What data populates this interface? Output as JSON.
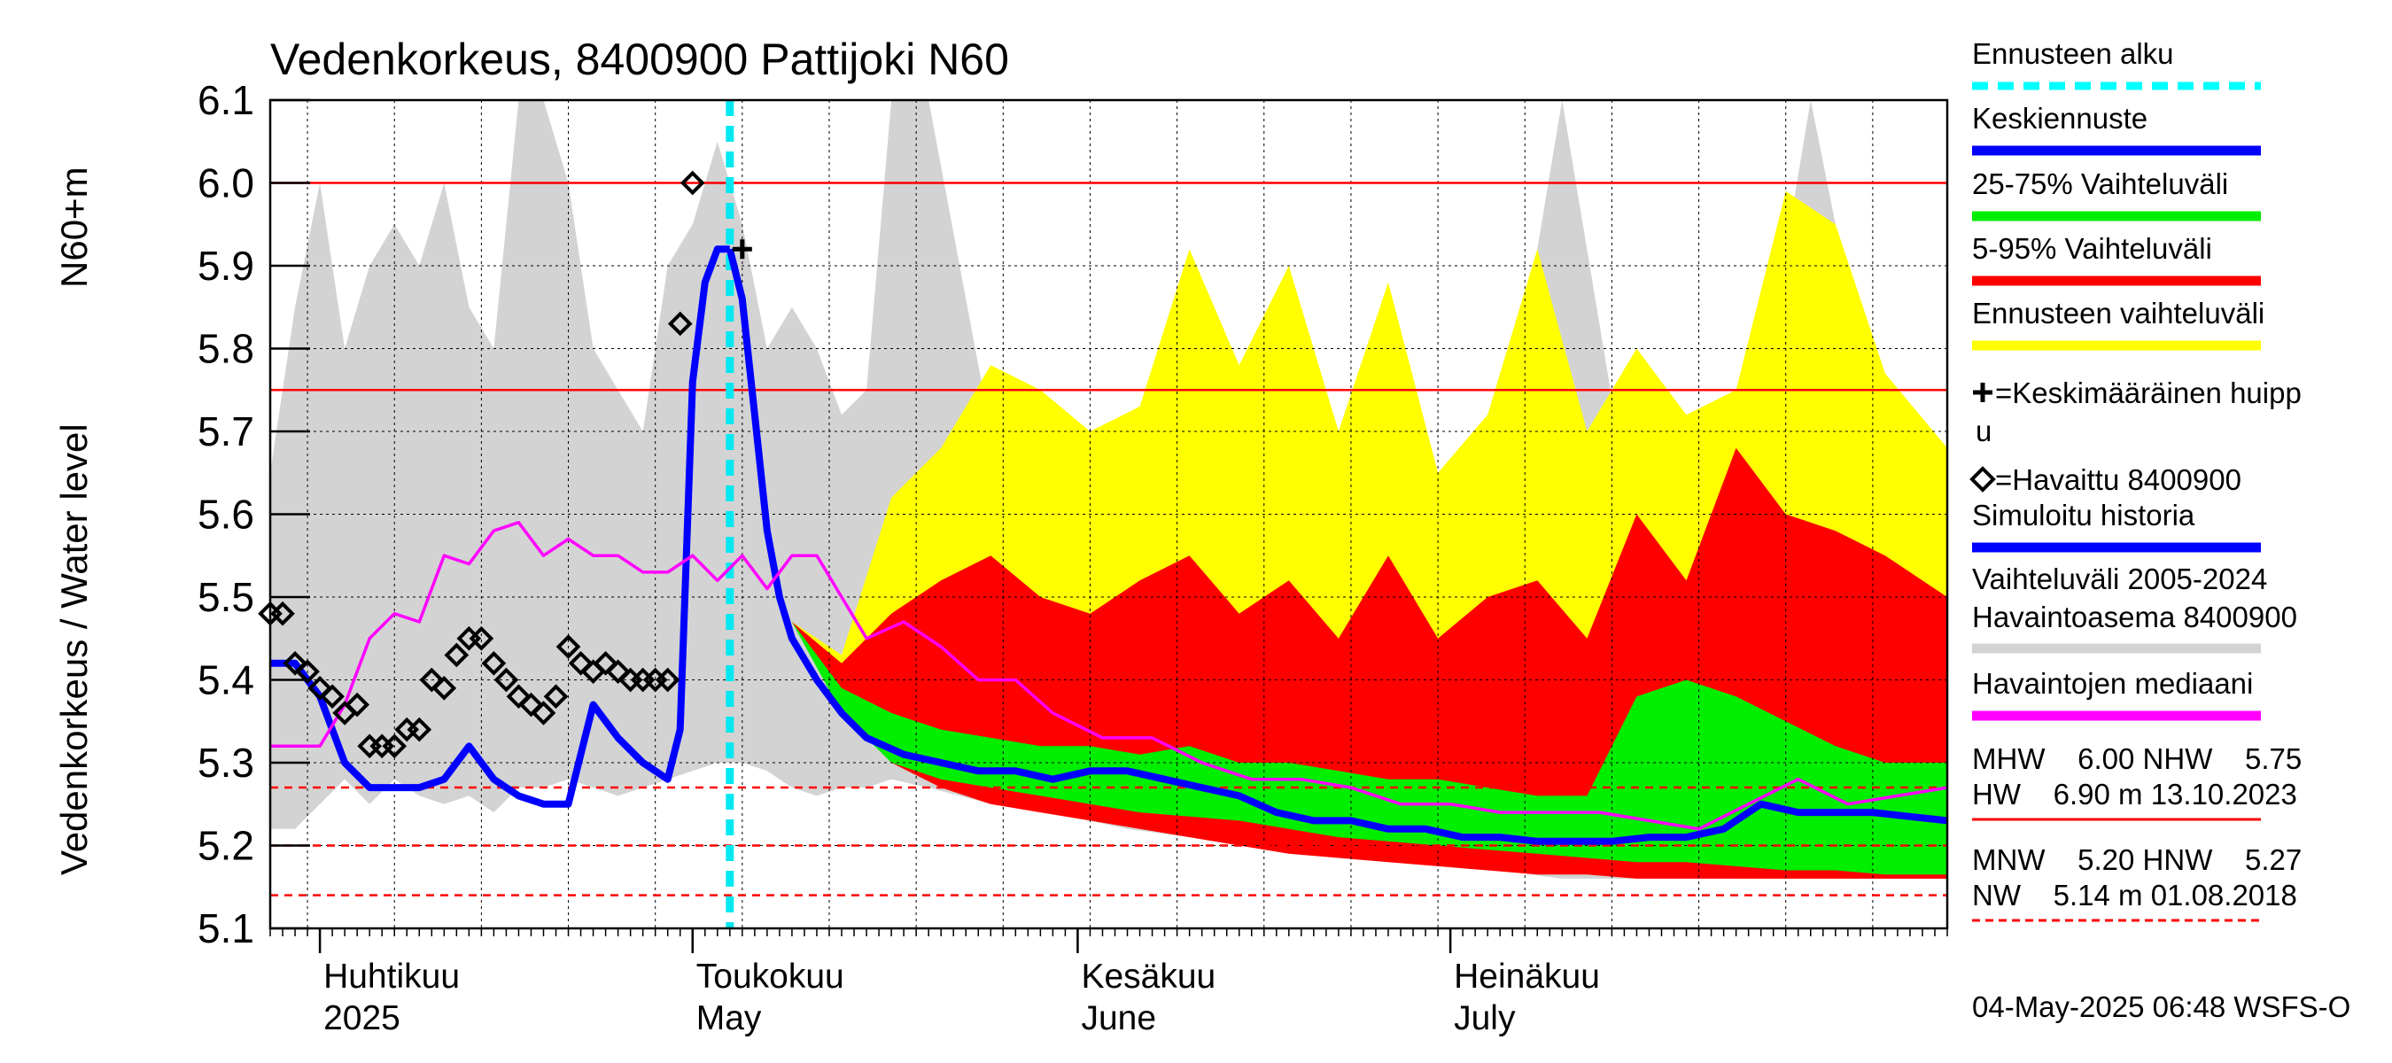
{
  "chart_data": {
    "type": "area",
    "title": "Vedenkorkeus, 8400900 Pattijoki N60",
    "ylabel_top": "N60+m",
    "ylabel": "Vedenkorkeus / Water level",
    "ylim": [
      5.1,
      6.1
    ],
    "yticks": [
      "5.1",
      "5.2",
      "5.3",
      "5.4",
      "5.5",
      "5.6",
      "5.7",
      "5.8",
      "5.9",
      "6.0",
      "6.1"
    ],
    "x_range": [
      "2025-03-28",
      "2025-08-10"
    ],
    "month_labels": [
      {
        "date": "2025-04-01",
        "fi": "Huhtikuu",
        "en": "2025"
      },
      {
        "date": "2025-05-01",
        "fi": "Toukokuu",
        "en": "May"
      },
      {
        "date": "2025-06-01",
        "fi": "Kesäkuu",
        "en": "June"
      },
      {
        "date": "2025-07-01",
        "fi": "Heinäkuu",
        "en": "July"
      }
    ],
    "forecast_start": "2025-05-04",
    "reference_lines": [
      {
        "name": "MHW",
        "value": 6.0,
        "style": "solid",
        "color": "#ff0000"
      },
      {
        "name": "NHW",
        "value": 5.75,
        "style": "solid",
        "color": "#ff0000"
      },
      {
        "name": "HNW",
        "value": 5.27,
        "style": "dashed",
        "color": "#ff0000"
      },
      {
        "name": "MNW",
        "value": 5.2,
        "style": "dashed",
        "color": "#ff0000"
      },
      {
        "name": "NW",
        "value": 5.14,
        "style": "dashed",
        "color": "#ff0000"
      }
    ],
    "series": [
      {
        "name": "Vaihteluväli 2005-2024 Havaintoasema 8400900",
        "kind": "band",
        "color": "#d3d3d3",
        "x": [
          "2025-03-28",
          "2025-03-30",
          "2025-04-01",
          "2025-04-03",
          "2025-04-05",
          "2025-04-07",
          "2025-04-09",
          "2025-04-11",
          "2025-04-13",
          "2025-04-15",
          "2025-04-17",
          "2025-04-19",
          "2025-04-21",
          "2025-04-23",
          "2025-04-25",
          "2025-04-27",
          "2025-04-29",
          "2025-05-01",
          "2025-05-03",
          "2025-05-05",
          "2025-05-07",
          "2025-05-09",
          "2025-05-11",
          "2025-05-13",
          "2025-05-15",
          "2025-05-17",
          "2025-05-20",
          "2025-05-25",
          "2025-05-30",
          "2025-06-05",
          "2025-06-10",
          "2025-06-15",
          "2025-06-20",
          "2025-06-25",
          "2025-06-30",
          "2025-07-05",
          "2025-07-10",
          "2025-07-15",
          "2025-07-20",
          "2025-07-25",
          "2025-07-30",
          "2025-08-05",
          "2025-08-10"
        ],
        "lower": [
          5.22,
          5.22,
          5.25,
          5.28,
          5.25,
          5.28,
          5.26,
          5.25,
          5.26,
          5.24,
          5.27,
          5.27,
          5.28,
          5.27,
          5.26,
          5.27,
          5.28,
          5.29,
          5.3,
          5.3,
          5.29,
          5.27,
          5.26,
          5.27,
          5.27,
          5.28,
          5.27,
          5.25,
          5.24,
          5.22,
          5.21,
          5.2,
          5.19,
          5.19,
          5.18,
          5.17,
          5.16,
          5.16,
          5.16,
          5.16,
          5.16,
          5.16,
          5.16
        ],
        "upper": [
          5.65,
          5.85,
          6.0,
          5.8,
          5.9,
          5.95,
          5.9,
          6.0,
          5.85,
          5.8,
          6.1,
          6.1,
          6.0,
          5.8,
          5.75,
          5.7,
          5.9,
          5.95,
          6.05,
          5.95,
          5.8,
          5.85,
          5.8,
          5.72,
          5.75,
          6.1,
          6.1,
          5.7,
          5.6,
          5.55,
          5.5,
          5.6,
          5.55,
          5.52,
          5.55,
          5.65,
          6.1,
          5.65,
          5.6,
          5.65,
          6.1,
          5.65,
          5.65
        ]
      },
      {
        "name": "Ennusteen vaihteluväli",
        "kind": "band",
        "color": "#ffff00",
        "x": [
          "2025-05-09",
          "2025-05-13",
          "2025-05-17",
          "2025-05-21",
          "2025-05-25",
          "2025-05-29",
          "2025-06-02",
          "2025-06-06",
          "2025-06-10",
          "2025-06-14",
          "2025-06-18",
          "2025-06-22",
          "2025-06-26",
          "2025-06-30",
          "2025-07-04",
          "2025-07-08",
          "2025-07-12",
          "2025-07-16",
          "2025-07-20",
          "2025-07-24",
          "2025-07-28",
          "2025-08-01",
          "2025-08-05",
          "2025-08-10"
        ],
        "lower": [
          5.47,
          5.4,
          5.33,
          5.29,
          5.27,
          5.25,
          5.24,
          5.23,
          5.22,
          5.21,
          5.2,
          5.19,
          5.185,
          5.18,
          5.175,
          5.17,
          5.17,
          5.165,
          5.165,
          5.16,
          5.16,
          5.16,
          5.16,
          5.16
        ],
        "upper": [
          5.47,
          5.43,
          5.62,
          5.68,
          5.78,
          5.75,
          5.7,
          5.73,
          5.92,
          5.78,
          5.9,
          5.7,
          5.88,
          5.65,
          5.72,
          5.92,
          5.7,
          5.8,
          5.72,
          5.75,
          5.99,
          5.95,
          5.77,
          5.68
        ]
      },
      {
        "name": "5-95% Vaihteluväli",
        "kind": "band",
        "color": "#ff0000",
        "x": [
          "2025-05-09",
          "2025-05-13",
          "2025-05-17",
          "2025-05-21",
          "2025-05-25",
          "2025-05-29",
          "2025-06-02",
          "2025-06-06",
          "2025-06-10",
          "2025-06-14",
          "2025-06-18",
          "2025-06-22",
          "2025-06-26",
          "2025-06-30",
          "2025-07-04",
          "2025-07-08",
          "2025-07-12",
          "2025-07-16",
          "2025-07-20",
          "2025-07-24",
          "2025-07-28",
          "2025-08-01",
          "2025-08-05",
          "2025-08-10"
        ],
        "lower": [
          5.47,
          5.37,
          5.3,
          5.27,
          5.25,
          5.24,
          5.23,
          5.22,
          5.21,
          5.2,
          5.19,
          5.185,
          5.18,
          5.175,
          5.17,
          5.165,
          5.165,
          5.16,
          5.16,
          5.16,
          5.16,
          5.16,
          5.16,
          5.16
        ],
        "upper": [
          5.47,
          5.42,
          5.48,
          5.52,
          5.55,
          5.5,
          5.48,
          5.52,
          5.55,
          5.48,
          5.52,
          5.45,
          5.55,
          5.45,
          5.5,
          5.52,
          5.45,
          5.6,
          5.52,
          5.68,
          5.6,
          5.58,
          5.55,
          5.5
        ]
      },
      {
        "name": "25-75% Vaihteluväli",
        "kind": "band",
        "color": "#00ee00",
        "x": [
          "2025-05-09",
          "2025-05-13",
          "2025-05-17",
          "2025-05-21",
          "2025-05-25",
          "2025-05-29",
          "2025-06-02",
          "2025-06-06",
          "2025-06-10",
          "2025-06-14",
          "2025-06-18",
          "2025-06-22",
          "2025-06-26",
          "2025-06-30",
          "2025-07-04",
          "2025-07-08",
          "2025-07-12",
          "2025-07-16",
          "2025-07-20",
          "2025-07-24",
          "2025-07-28",
          "2025-08-01",
          "2025-08-05",
          "2025-08-10"
        ],
        "lower": [
          5.47,
          5.36,
          5.3,
          5.28,
          5.27,
          5.26,
          5.25,
          5.24,
          5.235,
          5.23,
          5.22,
          5.21,
          5.205,
          5.2,
          5.195,
          5.19,
          5.185,
          5.18,
          5.18,
          5.175,
          5.17,
          5.17,
          5.165,
          5.165
        ],
        "upper": [
          5.47,
          5.39,
          5.36,
          5.34,
          5.33,
          5.32,
          5.32,
          5.31,
          5.32,
          5.3,
          5.3,
          5.29,
          5.28,
          5.28,
          5.27,
          5.26,
          5.26,
          5.38,
          5.4,
          5.38,
          5.35,
          5.32,
          5.3,
          5.3
        ]
      },
      {
        "name": "Simuloitu historia",
        "kind": "line",
        "color": "#0000ff",
        "x": [
          "2025-03-28",
          "2025-03-30",
          "2025-04-01",
          "2025-04-03",
          "2025-04-05",
          "2025-04-07",
          "2025-04-09",
          "2025-04-11",
          "2025-04-13",
          "2025-04-15",
          "2025-04-17",
          "2025-04-19",
          "2025-04-21",
          "2025-04-23",
          "2025-04-25",
          "2025-04-27",
          "2025-04-29",
          "2025-04-30",
          "2025-05-01",
          "2025-05-02",
          "2025-05-03",
          "2025-05-04"
        ],
        "y": [
          5.42,
          5.42,
          5.38,
          5.3,
          5.27,
          5.27,
          5.27,
          5.28,
          5.32,
          5.28,
          5.26,
          5.25,
          5.25,
          5.37,
          5.33,
          5.3,
          5.28,
          5.34,
          5.76,
          5.88,
          5.92,
          5.92
        ]
      },
      {
        "name": "Keskiennuste",
        "kind": "line",
        "color": "#0000ff",
        "x": [
          "2025-05-04",
          "2025-05-05",
          "2025-05-06",
          "2025-05-07",
          "2025-05-08",
          "2025-05-09",
          "2025-05-11",
          "2025-05-13",
          "2025-05-15",
          "2025-05-18",
          "2025-05-21",
          "2025-05-24",
          "2025-05-27",
          "2025-05-30",
          "2025-06-02",
          "2025-06-05",
          "2025-06-08",
          "2025-06-11",
          "2025-06-14",
          "2025-06-17",
          "2025-06-20",
          "2025-06-23",
          "2025-06-26",
          "2025-06-29",
          "2025-07-02",
          "2025-07-05",
          "2025-07-08",
          "2025-07-11",
          "2025-07-14",
          "2025-07-17",
          "2025-07-20",
          "2025-07-23",
          "2025-07-26",
          "2025-07-29",
          "2025-08-01",
          "2025-08-04",
          "2025-08-07",
          "2025-08-10"
        ],
        "y": [
          5.92,
          5.86,
          5.72,
          5.58,
          5.5,
          5.45,
          5.4,
          5.36,
          5.33,
          5.31,
          5.3,
          5.29,
          5.29,
          5.28,
          5.29,
          5.29,
          5.28,
          5.27,
          5.26,
          5.24,
          5.23,
          5.23,
          5.22,
          5.22,
          5.21,
          5.21,
          5.205,
          5.205,
          5.205,
          5.21,
          5.21,
          5.22,
          5.25,
          5.24,
          5.24,
          5.24,
          5.235,
          5.23
        ]
      },
      {
        "name": "Havaintojen mediaani",
        "kind": "line",
        "color": "#ff00ff",
        "x": [
          "2025-03-28",
          "2025-04-01",
          "2025-04-03",
          "2025-04-05",
          "2025-04-07",
          "2025-04-09",
          "2025-04-11",
          "2025-04-13",
          "2025-04-15",
          "2025-04-17",
          "2025-04-19",
          "2025-04-21",
          "2025-04-23",
          "2025-04-25",
          "2025-04-27",
          "2025-04-29",
          "2025-05-01",
          "2025-05-03",
          "2025-05-05",
          "2025-05-07",
          "2025-05-09",
          "2025-05-11",
          "2025-05-13",
          "2025-05-15",
          "2025-05-18",
          "2025-05-21",
          "2025-05-24",
          "2025-05-27",
          "2025-05-30",
          "2025-06-03",
          "2025-06-07",
          "2025-06-11",
          "2025-06-15",
          "2025-06-19",
          "2025-06-23",
          "2025-06-27",
          "2025-07-01",
          "2025-07-05",
          "2025-07-09",
          "2025-07-13",
          "2025-07-17",
          "2025-07-21",
          "2025-07-25",
          "2025-07-29",
          "2025-08-02",
          "2025-08-06",
          "2025-08-10"
        ],
        "y": [
          5.32,
          5.32,
          5.37,
          5.45,
          5.48,
          5.47,
          5.55,
          5.54,
          5.58,
          5.59,
          5.55,
          5.57,
          5.55,
          5.55,
          5.53,
          5.53,
          5.55,
          5.52,
          5.55,
          5.51,
          5.55,
          5.55,
          5.5,
          5.45,
          5.47,
          5.44,
          5.4,
          5.4,
          5.36,
          5.33,
          5.33,
          5.3,
          5.28,
          5.28,
          5.27,
          5.25,
          5.25,
          5.24,
          5.24,
          5.24,
          5.23,
          5.22,
          5.25,
          5.28,
          5.25,
          5.26,
          5.27
        ]
      },
      {
        "name": "=Havaittu 8400900",
        "kind": "markers",
        "marker": "diamond",
        "color": "#000000",
        "x": [
          "2025-03-28",
          "2025-03-29",
          "2025-03-30",
          "2025-03-31",
          "2025-04-01",
          "2025-04-02",
          "2025-04-03",
          "2025-04-04",
          "2025-04-05",
          "2025-04-06",
          "2025-04-07",
          "2025-04-08",
          "2025-04-09",
          "2025-04-10",
          "2025-04-11",
          "2025-04-12",
          "2025-04-13",
          "2025-04-14",
          "2025-04-15",
          "2025-04-16",
          "2025-04-17",
          "2025-04-18",
          "2025-04-19",
          "2025-04-20",
          "2025-04-21",
          "2025-04-22",
          "2025-04-23",
          "2025-04-24",
          "2025-04-25",
          "2025-04-26",
          "2025-04-27",
          "2025-04-28",
          "2025-04-29",
          "2025-04-30",
          "2025-05-01"
        ],
        "y": [
          5.48,
          5.48,
          5.42,
          5.41,
          5.39,
          5.38,
          5.36,
          5.37,
          5.32,
          5.32,
          5.32,
          5.34,
          5.34,
          5.4,
          5.39,
          5.43,
          5.45,
          5.45,
          5.42,
          5.4,
          5.38,
          5.37,
          5.36,
          5.38,
          5.44,
          5.42,
          5.41,
          5.42,
          5.41,
          5.4,
          5.4,
          5.4,
          5.4,
          5.83,
          6.0
        ]
      },
      {
        "name": "=Keskimääräinen huippu",
        "kind": "markers",
        "marker": "cross",
        "color": "#000000",
        "x": [
          "2025-05-05"
        ],
        "y": [
          5.92
        ]
      }
    ]
  },
  "legend": {
    "items": [
      {
        "label": "Ennusteen alku",
        "color": "#00ffff",
        "style": "dashed"
      },
      {
        "label": "Keskiennuste",
        "color": "#0000ff",
        "style": "solid"
      },
      {
        "label": "25-75% Vaihteluväli",
        "color": "#00ee00",
        "style": "solid"
      },
      {
        "label": "5-95% Vaihteluväli",
        "color": "#ff0000",
        "style": "solid"
      },
      {
        "label": "Ennusteen vaihteluväli",
        "color": "#ffff00",
        "style": "solid"
      },
      {
        "label": "=Keskimääräinen huipp",
        "label2": "u",
        "marker": "cross"
      },
      {
        "label": "=Havaittu 8400900",
        "marker": "diamond"
      },
      {
        "label": "Simuloitu historia",
        "color": "#0000ff",
        "style": "solid"
      },
      {
        "label": "Vaihteluväli 2005-2024",
        "label2": " Havaintoasema 8400900",
        "color": "#d3d3d3",
        "style": "solid"
      },
      {
        "label": "Havaintojen mediaani",
        "color": "#ff00ff",
        "style": "solid"
      }
    ],
    "stats": [
      {
        "text": "MHW    6.00 NHW    5.75",
        "line": "none"
      },
      {
        "text": "HW    6.90 m 13.10.2023",
        "line": "solid"
      },
      {
        "text": "MNW    5.20 HNW    5.27",
        "line": "none"
      },
      {
        "text": "NW    5.14 m 01.08.2018",
        "line": "dashed"
      }
    ],
    "timestamp": "04-May-2025 06:48 WSFS-O"
  }
}
